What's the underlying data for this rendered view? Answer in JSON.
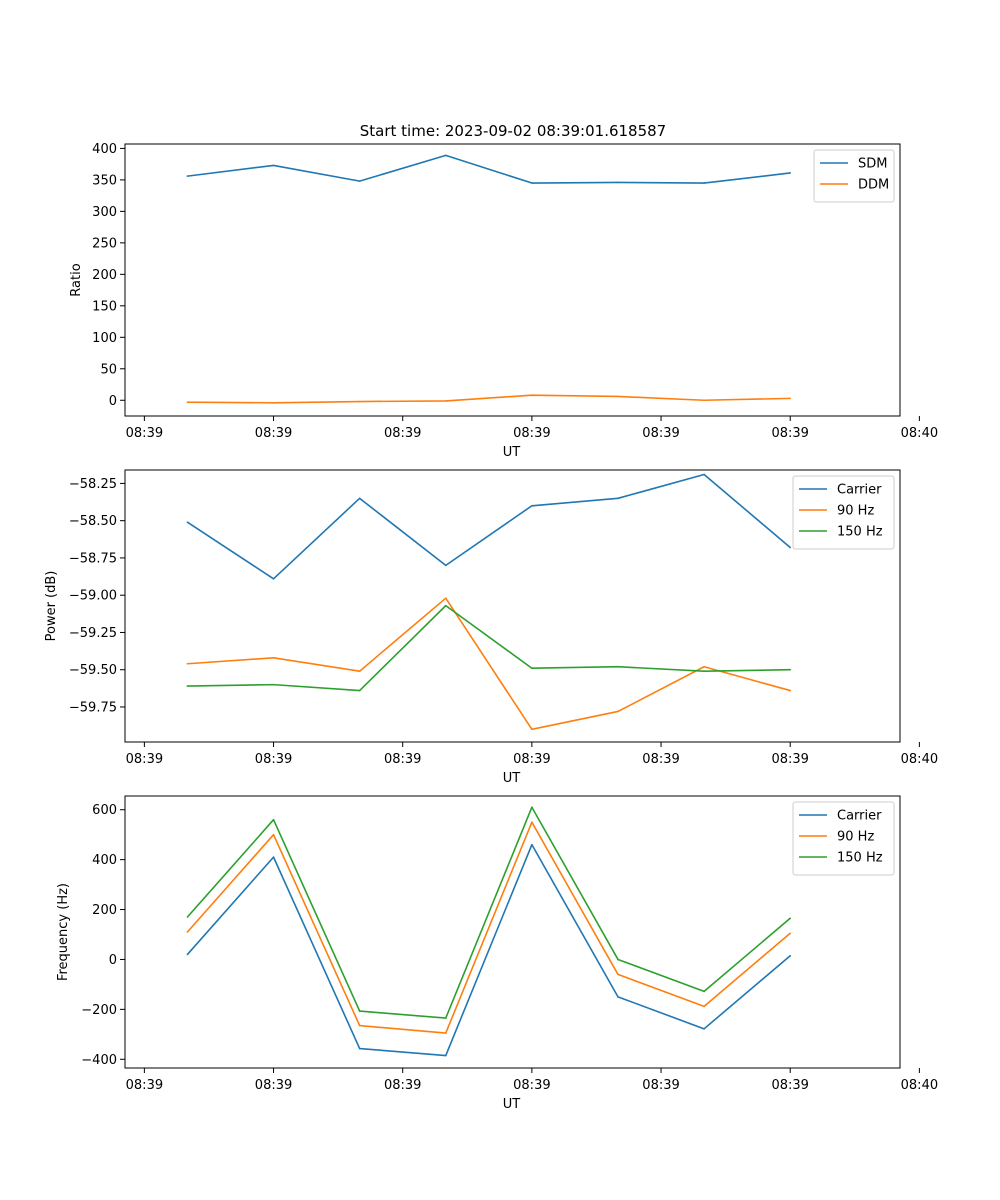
{
  "figure_title": "Start time: 2023-09-02 08:39:01.618587",
  "colors": {
    "blue": "#1f77b4",
    "orange": "#ff7f0e",
    "green": "#2ca02c"
  },
  "chart_data": [
    {
      "type": "line",
      "title": "Start time: 2023-09-02 08:39:01.618587",
      "xlabel": "UT",
      "ylabel": "Ratio",
      "x": [
        1,
        2,
        3,
        4,
        5,
        6,
        7,
        8
      ],
      "xlim": [
        0.275,
        9.275
      ],
      "x_ticks": [
        0.5,
        2,
        3.5,
        5,
        6.5,
        8,
        9.5
      ],
      "x_tick_labels": [
        "08:39",
        "08:39",
        "08:39",
        "08:39",
        "08:39",
        "08:39",
        "08:40"
      ],
      "ylim": [
        -25,
        407
      ],
      "y_ticks": [
        0,
        50,
        100,
        150,
        200,
        250,
        300,
        350,
        400
      ],
      "y_tick_labels": [
        "0",
        "50",
        "100",
        "150",
        "200",
        "250",
        "300",
        "350",
        "400"
      ],
      "legend_position": "top-right",
      "series": [
        {
          "name": "SDM",
          "color": "#1f77b4",
          "values": [
            356,
            373,
            348,
            389,
            345,
            346,
            345,
            361
          ]
        },
        {
          "name": "DDM",
          "color": "#ff7f0e",
          "values": [
            -3,
            -4,
            -2,
            -1,
            8,
            6,
            0,
            3
          ]
        }
      ]
    },
    {
      "type": "line",
      "title": "",
      "xlabel": "UT",
      "ylabel": "Power (dB)",
      "x": [
        1,
        2,
        3,
        4,
        5,
        6,
        7,
        8
      ],
      "xlim": [
        0.275,
        9.275
      ],
      "x_ticks": [
        0.5,
        2,
        3.5,
        5,
        6.5,
        8,
        9.5
      ],
      "x_tick_labels": [
        "08:39",
        "08:39",
        "08:39",
        "08:39",
        "08:39",
        "08:39",
        "08:40"
      ],
      "ylim": [
        -59.985,
        -58.16
      ],
      "y_ticks": [
        -58.25,
        -58.5,
        -58.75,
        -59.0,
        -59.25,
        -59.5,
        -59.75
      ],
      "y_tick_labels": [
        "−58.25",
        "−58.50",
        "−58.75",
        "−59.00",
        "−59.25",
        "−59.50",
        "−59.75"
      ],
      "legend_position": "top-right",
      "series": [
        {
          "name": "Carrier",
          "color": "#1f77b4",
          "values": [
            -58.51,
            -58.89,
            -58.35,
            -58.8,
            -58.4,
            -58.35,
            -58.19,
            -58.68
          ]
        },
        {
          "name": "90 Hz",
          "color": "#ff7f0e",
          "values": [
            -59.46,
            -59.42,
            -59.51,
            -59.02,
            -59.9,
            -59.78,
            -59.48,
            -59.64
          ]
        },
        {
          "name": "150 Hz",
          "color": "#2ca02c",
          "values": [
            -59.61,
            -59.6,
            -59.64,
            -59.07,
            -59.49,
            -59.48,
            -59.51,
            -59.5
          ]
        }
      ]
    },
    {
      "type": "line",
      "title": "",
      "xlabel": "UT",
      "ylabel": "Frequency (Hz)",
      "x": [
        1,
        2,
        3,
        4,
        5,
        6,
        7,
        8
      ],
      "xlim": [
        0.275,
        9.275
      ],
      "x_ticks": [
        0.5,
        2,
        3.5,
        5,
        6.5,
        8,
        9.5
      ],
      "x_tick_labels": [
        "08:39",
        "08:39",
        "08:39",
        "08:39",
        "08:39",
        "08:39",
        "08:40"
      ],
      "ylim": [
        -435,
        655
      ],
      "y_ticks": [
        600,
        400,
        200,
        0,
        -200,
        -400
      ],
      "y_tick_labels": [
        "600",
        "400",
        "200",
        "0",
        "−200",
        "−400"
      ],
      "legend_position": "top-right",
      "series": [
        {
          "name": "Carrier",
          "color": "#1f77b4",
          "values": [
            20,
            410,
            -357,
            -385,
            460,
            -150,
            -278,
            15
          ]
        },
        {
          "name": "90 Hz",
          "color": "#ff7f0e",
          "values": [
            110,
            500,
            -265,
            -295,
            550,
            -60,
            -188,
            105
          ]
        },
        {
          "name": "150 Hz",
          "color": "#2ca02c",
          "values": [
            170,
            560,
            -207,
            -235,
            610,
            0,
            -128,
            165
          ]
        }
      ]
    }
  ]
}
